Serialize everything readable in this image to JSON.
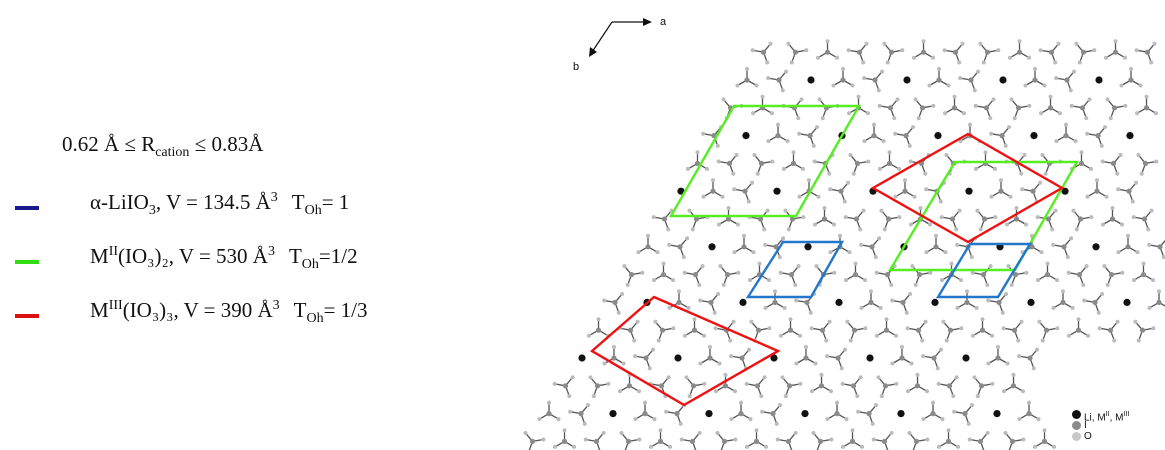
{
  "radius_condition": {
    "prefix": "0.62 Å ≤ R",
    "sub": "cation",
    "suffix": " ≤ 0.83Å"
  },
  "legend": [
    {
      "color": "#1a1a8c",
      "name": "α-LiIO",
      "name_sub": "3",
      "oxidation_sup": "",
      "formula_tail": ", V = 134.5 Å",
      "volume_sup": "3",
      "toh_label": "T",
      "toh_sub": "Oh",
      "toh_value": "= 1"
    },
    {
      "color": "#33dd11",
      "name": "M",
      "name_sub": "",
      "oxidation_sup": "II",
      "formula_tail": "(IO₃)₂, V = 530 Å",
      "volume_sup": "3",
      "toh_label": "T",
      "toh_sub": "Oh",
      "toh_value": "=1/2"
    },
    {
      "color": "#dd1111",
      "name": "M",
      "name_sub": "",
      "oxidation_sup": "III",
      "formula_tail": "(IO₃)₃, V = 390 Å",
      "volume_sup": "3",
      "toh_label": "T",
      "toh_sub": "Oh",
      "toh_value": "= 1/3"
    }
  ],
  "axes": {
    "a": "a",
    "b": "b"
  },
  "atom_legend": [
    {
      "label": "Li, M",
      "sup": "II",
      "tail": ", M",
      "sup2": "III",
      "color": "#111111"
    },
    {
      "label": "I",
      "sup": "",
      "tail": "",
      "sup2": "",
      "color": "#8a8a8a"
    },
    {
      "label": "O",
      "sup": "",
      "tail": "",
      "sup2": "",
      "color": "#c8c8c8"
    }
  ],
  "cell_colors": {
    "blue": "#2277cc",
    "green": "#55ee22",
    "red": "#ee1111"
  }
}
